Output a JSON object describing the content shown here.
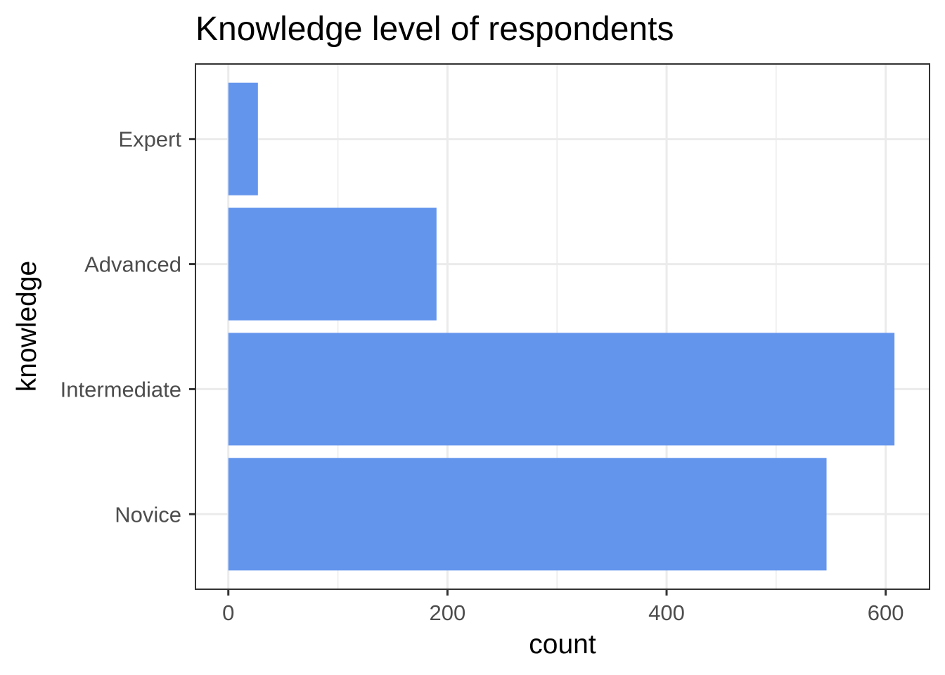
{
  "chart_data": {
    "type": "bar",
    "orientation": "horizontal",
    "title": "Knowledge level of respondents",
    "xlabel": "count",
    "ylabel": "knowledge",
    "categories": [
      "Expert",
      "Advanced",
      "Intermediate",
      "Novice"
    ],
    "values": [
      27,
      190,
      608,
      546
    ],
    "xlim": [
      -30,
      640
    ],
    "x_ticks": [
      "0",
      "200",
      "400",
      "600"
    ],
    "grid": true,
    "bar_color": "#6495ED"
  }
}
